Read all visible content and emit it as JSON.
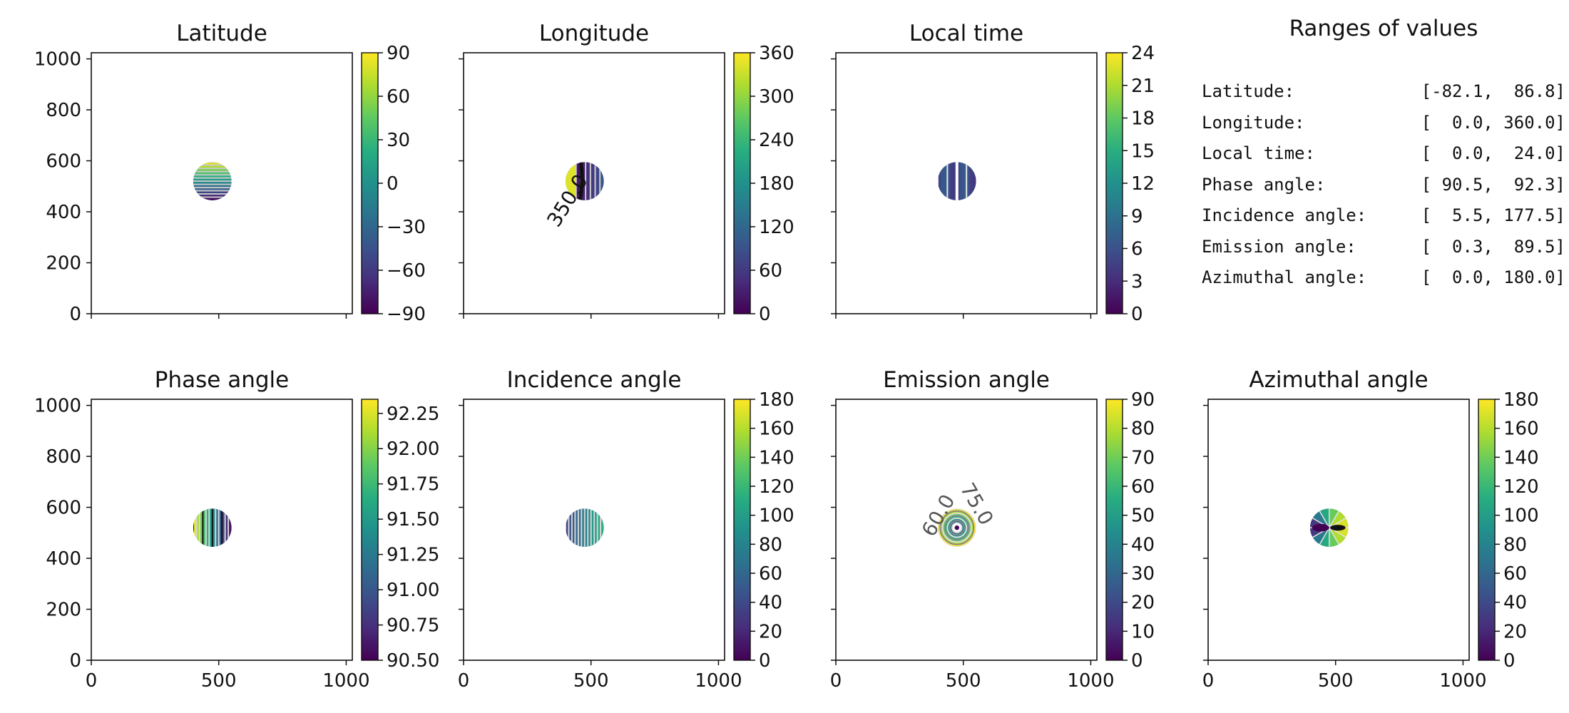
{
  "ranges_panel": {
    "title": "Ranges of values",
    "rows": [
      {
        "label": "Latitude:",
        "range": "[-82.1,  86.8]"
      },
      {
        "label": "Longitude:",
        "range": "[  0.0, 360.0]"
      },
      {
        "label": "Local time:",
        "range": "[  0.0,  24.0]"
      },
      {
        "label": "Phase angle:",
        "range": "[ 90.5,  92.3]"
      },
      {
        "label": "Incidence angle:",
        "range": "[  5.5, 177.5]"
      },
      {
        "label": "Emission angle:",
        "range": "[  0.3,  89.5]"
      },
      {
        "label": "Azimuthal angle:",
        "range": "[  0.0, 180.0]"
      }
    ]
  },
  "chart_data": [
    {
      "type": "heatmap",
      "title": "Latitude",
      "xlim": [
        0,
        1024
      ],
      "ylim": [
        0,
        1024
      ],
      "xticks": [
        0,
        500,
        1000
      ],
      "yticks": [
        0,
        200,
        400,
        600,
        800,
        1000
      ],
      "show_xticklabels": false,
      "show_yticklabels": true,
      "disc": {
        "center": [
          475,
          520
        ],
        "radius": 75
      },
      "pattern": "latitude",
      "contour_labels": [],
      "colorbar": {
        "min": -90,
        "max": 90,
        "ticks": [
          -90,
          -60,
          -30,
          0,
          30,
          60,
          90
        ],
        "tick_labels": [
          "−90",
          "−60",
          "−30",
          "0",
          "30",
          "60",
          "90"
        ]
      }
    },
    {
      "type": "heatmap",
      "title": "Longitude",
      "xlim": [
        0,
        1024
      ],
      "ylim": [
        0,
        1024
      ],
      "xticks": [
        0,
        500,
        1000
      ],
      "yticks": [
        0,
        200,
        400,
        600,
        800,
        1000
      ],
      "show_xticklabels": false,
      "show_yticklabels": false,
      "disc": {
        "center": [
          475,
          520
        ],
        "radius": 75
      },
      "pattern": "longitude",
      "contour_labels": [
        {
          "text": "350.0",
          "x": 430,
          "y": 430,
          "angle": -58
        }
      ],
      "colorbar": {
        "min": 0,
        "max": 360,
        "ticks": [
          0,
          60,
          120,
          180,
          240,
          300,
          360
        ],
        "tick_labels": [
          "0",
          "60",
          "120",
          "180",
          "240",
          "300",
          "360"
        ]
      }
    },
    {
      "type": "heatmap",
      "title": "Local time",
      "xlim": [
        0,
        1024
      ],
      "ylim": [
        0,
        1024
      ],
      "xticks": [
        0,
        500,
        1000
      ],
      "yticks": [
        0,
        200,
        400,
        600,
        800,
        1000
      ],
      "show_xticklabels": false,
      "show_yticklabels": false,
      "disc": {
        "center": [
          475,
          520
        ],
        "radius": 75
      },
      "pattern": "localtime",
      "contour_labels": [],
      "colorbar": {
        "min": 0,
        "max": 24,
        "ticks": [
          0,
          3,
          6,
          9,
          12,
          15,
          18,
          21,
          24
        ],
        "tick_labels": [
          "0",
          "3",
          "6",
          "9",
          "12",
          "15",
          "18",
          "21",
          "24"
        ]
      }
    },
    {
      "type": "heatmap",
      "title": "Phase angle",
      "xlim": [
        0,
        1024
      ],
      "ylim": [
        0,
        1024
      ],
      "xticks": [
        0,
        500,
        1000
      ],
      "yticks": [
        0,
        200,
        400,
        600,
        800,
        1000
      ],
      "show_xticklabels": true,
      "show_yticklabels": true,
      "disc": {
        "center": [
          475,
          520
        ],
        "radius": 75
      },
      "pattern": "phase",
      "contour_labels": [],
      "colorbar": {
        "min": 90.5,
        "max": 92.35,
        "ticks": [
          90.5,
          90.75,
          91.0,
          91.25,
          91.5,
          91.75,
          92.0,
          92.25
        ],
        "tick_labels": [
          "90.50",
          "90.75",
          "91.00",
          "91.25",
          "91.50",
          "91.75",
          "92.00",
          "92.25"
        ]
      }
    },
    {
      "type": "heatmap",
      "title": "Incidence angle",
      "xlim": [
        0,
        1024
      ],
      "ylim": [
        0,
        1024
      ],
      "xticks": [
        0,
        500,
        1000
      ],
      "yticks": [
        0,
        200,
        400,
        600,
        800,
        1000
      ],
      "show_xticklabels": true,
      "show_yticklabels": false,
      "disc": {
        "center": [
          475,
          520
        ],
        "radius": 75
      },
      "pattern": "incidence",
      "contour_labels": [],
      "colorbar": {
        "min": 0,
        "max": 180,
        "ticks": [
          0,
          20,
          40,
          60,
          80,
          100,
          120,
          140,
          160,
          180
        ],
        "tick_labels": [
          "0",
          "20",
          "40",
          "60",
          "80",
          "100",
          "120",
          "140",
          "160",
          "180"
        ]
      }
    },
    {
      "type": "heatmap",
      "title": "Emission angle",
      "xlim": [
        0,
        1024
      ],
      "ylim": [
        0,
        1024
      ],
      "xticks": [
        0,
        500,
        1000
      ],
      "yticks": [
        0,
        200,
        400,
        600,
        800,
        1000
      ],
      "show_xticklabels": true,
      "show_yticklabels": false,
      "disc": {
        "center": [
          475,
          520
        ],
        "radius": 75
      },
      "pattern": "emission",
      "contour_labels": [
        {
          "text": "75.0",
          "x": 530,
          "y": 600,
          "angle": 60
        },
        {
          "text": "60.0",
          "x": 425,
          "y": 555,
          "angle": -60
        }
      ],
      "colorbar": {
        "min": 0,
        "max": 90,
        "ticks": [
          0,
          10,
          20,
          30,
          40,
          50,
          60,
          70,
          80,
          90
        ],
        "tick_labels": [
          "0",
          "10",
          "20",
          "30",
          "40",
          "50",
          "60",
          "70",
          "80",
          "90"
        ]
      }
    },
    {
      "type": "heatmap",
      "title": "Azimuthal angle",
      "xlim": [
        0,
        1024
      ],
      "ylim": [
        0,
        1024
      ],
      "xticks": [
        0,
        500,
        1000
      ],
      "yticks": [
        0,
        200,
        400,
        600,
        800,
        1000
      ],
      "show_xticklabels": true,
      "show_yticklabels": false,
      "disc": {
        "center": [
          475,
          520
        ],
        "radius": 75
      },
      "pattern": "azimuth",
      "contour_labels": [],
      "colorbar": {
        "min": 0,
        "max": 180,
        "ticks": [
          0,
          20,
          40,
          60,
          80,
          100,
          120,
          140,
          160,
          180
        ],
        "tick_labels": [
          "0",
          "20",
          "40",
          "60",
          "80",
          "100",
          "120",
          "140",
          "160",
          "180"
        ]
      }
    }
  ]
}
